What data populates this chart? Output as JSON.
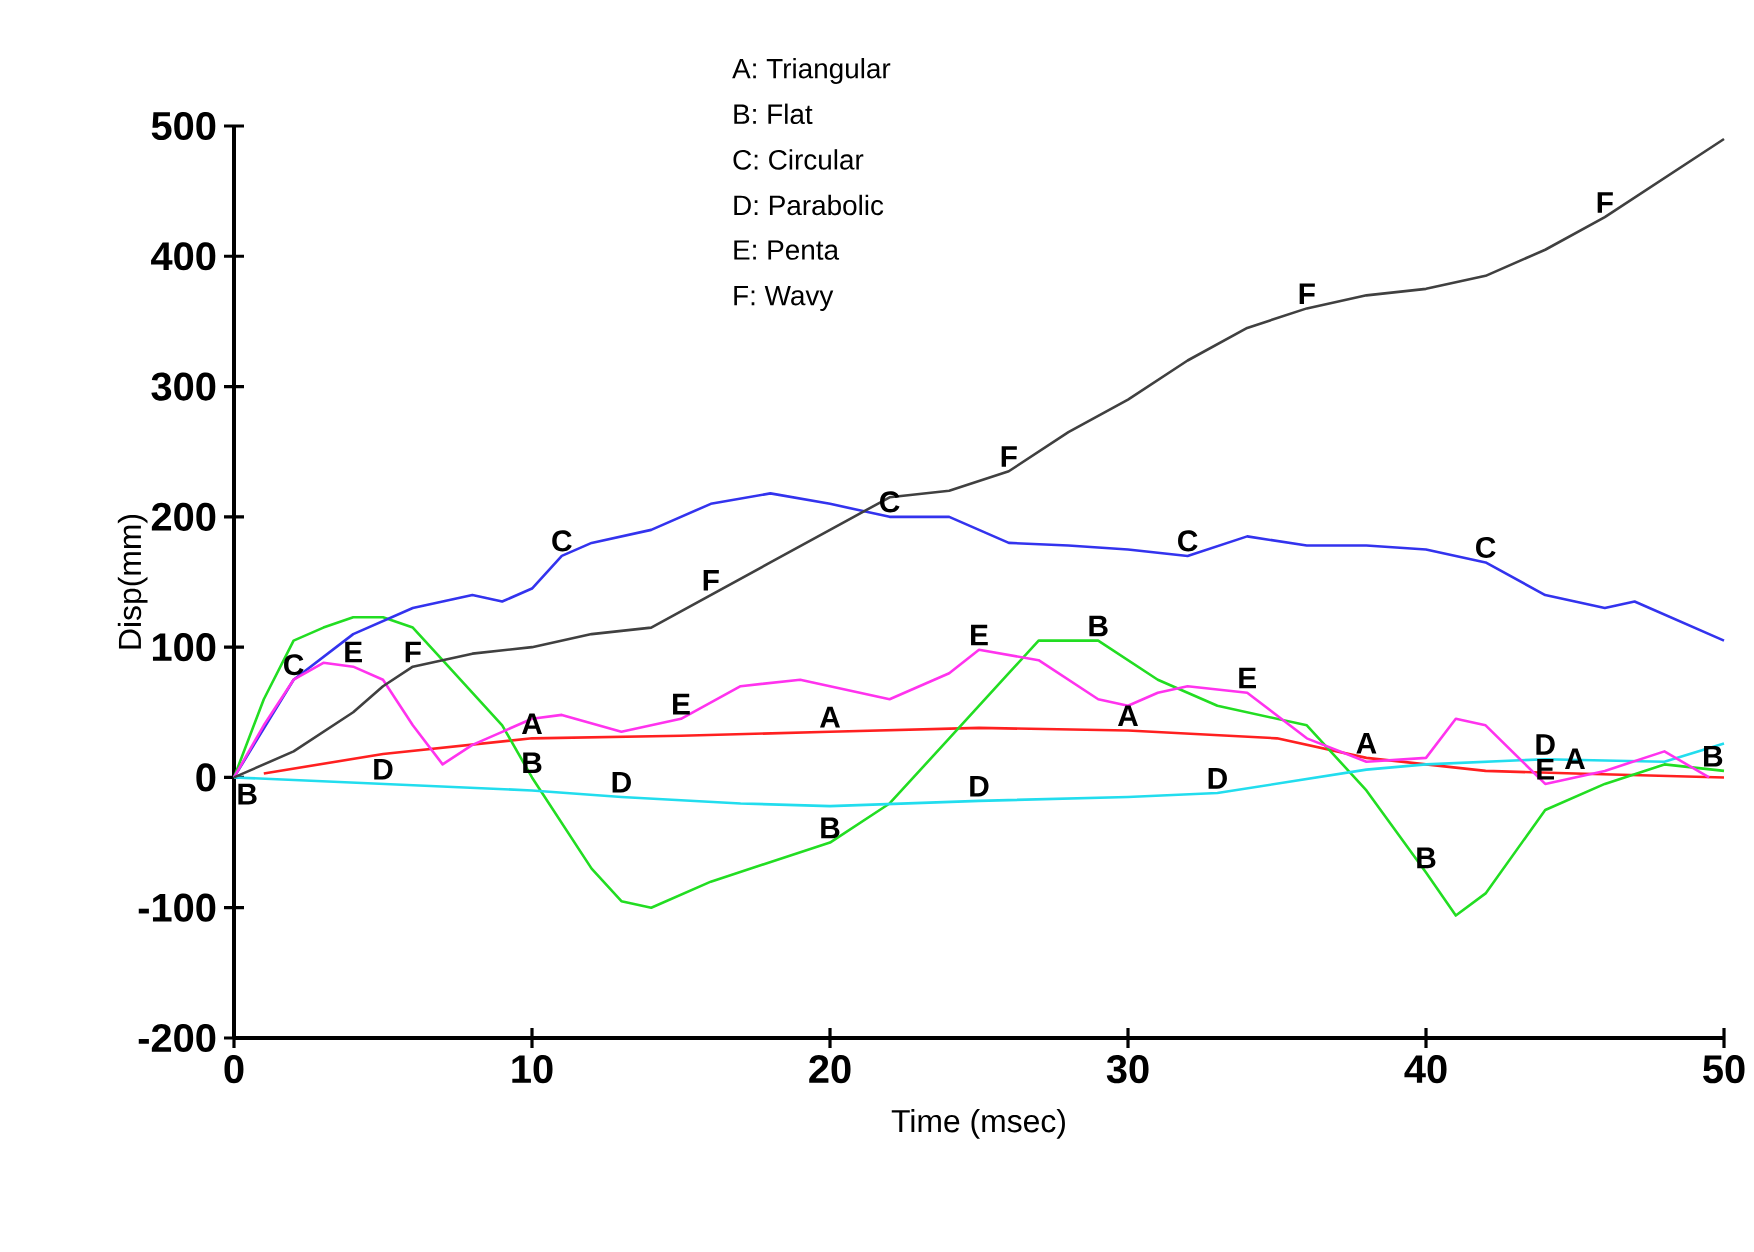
{
  "chart_data": {
    "type": "line",
    "xlabel": "Time (msec)",
    "ylabel": "Disp(mm)",
    "xlim": [
      0,
      50
    ],
    "ylim": [
      -200,
      500
    ],
    "xticks": [
      0,
      10,
      20,
      30,
      40,
      50
    ],
    "yticks": [
      -200,
      -100,
      0,
      100,
      200,
      300,
      400,
      500
    ],
    "grid": false,
    "marker": "none",
    "line_style": "solid",
    "series": [
      {
        "color": "#ff2020",
        "x": [
          1,
          5,
          10,
          15,
          20,
          25,
          30,
          35,
          38,
          40,
          42,
          45,
          50
        ],
        "values": [
          3,
          18,
          30,
          32,
          35,
          38,
          36,
          30,
          15,
          10,
          5,
          3,
          0
        ]
      },
      {
        "color": "#22dd22",
        "x": [
          0,
          1,
          2,
          3,
          4,
          5,
          6,
          7,
          9,
          10,
          12,
          13,
          14,
          16,
          20,
          22,
          24,
          26,
          27,
          29,
          31,
          33,
          36,
          38,
          40,
          41,
          42,
          44,
          46,
          48,
          50
        ],
        "values": [
          0,
          60,
          105,
          115,
          123,
          123,
          115,
          90,
          40,
          0,
          -70,
          -95,
          -100,
          -80,
          -50,
          -20,
          30,
          80,
          105,
          105,
          75,
          55,
          40,
          -10,
          -73,
          -106,
          -89,
          -25,
          -5,
          10,
          5
        ]
      },
      {
        "color": "#3333ee",
        "x": [
          0,
          2,
          4,
          6,
          8,
          9,
          10,
          11,
          12,
          14,
          16,
          18,
          20,
          22,
          24,
          26,
          28,
          30,
          32,
          34,
          36,
          38,
          40,
          42,
          44,
          46,
          47,
          50
        ],
        "values": [
          0,
          75,
          110,
          130,
          140,
          135,
          145,
          170,
          180,
          190,
          210,
          218,
          210,
          200,
          200,
          180,
          178,
          175,
          170,
          185,
          178,
          178,
          175,
          165,
          140,
          130,
          135,
          105
        ]
      },
      {
        "color": "#22ddee",
        "x": [
          0,
          5,
          10,
          13,
          17,
          20,
          25,
          30,
          33,
          38,
          40,
          44,
          48,
          50
        ],
        "values": [
          0,
          -5,
          -10,
          -15,
          -20,
          -22,
          -18,
          -15,
          -12,
          6,
          10,
          14,
          12,
          26
        ]
      },
      {
        "color": "#ff33ee",
        "x": [
          0,
          1,
          2,
          3,
          4,
          5,
          6,
          7,
          8,
          9,
          10,
          11,
          13,
          15,
          17,
          19,
          20,
          22,
          24,
          25,
          27,
          29,
          30,
          31,
          32,
          34,
          36,
          38,
          40,
          41,
          42,
          44,
          46,
          48,
          49.5
        ],
        "values": [
          0,
          40,
          75,
          88,
          85,
          75,
          40,
          10,
          25,
          35,
          45,
          48,
          35,
          45,
          70,
          75,
          70,
          60,
          80,
          98,
          90,
          60,
          55,
          65,
          70,
          65,
          30,
          12,
          15,
          45,
          40,
          -5,
          5,
          20,
          0
        ]
      },
      {
        "color": "#404040",
        "x": [
          0,
          2,
          4,
          5,
          6,
          8,
          10,
          12,
          14,
          16,
          18,
          20,
          22,
          24,
          26,
          28,
          30,
          32,
          34,
          36,
          38,
          40,
          42,
          44,
          46,
          48,
          50
        ],
        "values": [
          0,
          20,
          50,
          70,
          85,
          95,
          100,
          110,
          115,
          140,
          165,
          190,
          215,
          220,
          235,
          265,
          290,
          320,
          345,
          360,
          370,
          375,
          385,
          405,
          430,
          460,
          490
        ]
      }
    ],
    "annotations": [
      "A: Triangular",
      "B: Flat",
      "C: Circular",
      "D: Parabolic",
      "E: Penta",
      "F: Wavy",
      {
        "text": "A",
        "x": 10,
        "y": 30
      },
      {
        "text": "A",
        "x": 20,
        "y": 35
      },
      {
        "text": "A",
        "x": 30,
        "y": 36
      },
      {
        "text": "A",
        "x": 38,
        "y": 15
      },
      {
        "text": "A",
        "x": 45,
        "y": 3
      },
      {
        "text": "B",
        "x": 0,
        "y": 0
      },
      {
        "text": "B",
        "x": 10,
        "y": 0
      },
      {
        "text": "B",
        "x": 20,
        "y": -50
      },
      {
        "text": "B",
        "x": 29,
        "y": 105
      },
      {
        "text": "B",
        "x": 40,
        "y": -73
      },
      {
        "text": "B",
        "x": 50,
        "y": 5
      },
      {
        "text": "C",
        "x": 2,
        "y": 75
      },
      {
        "text": "C",
        "x": 11,
        "y": 170
      },
      {
        "text": "C",
        "x": 22,
        "y": 200
      },
      {
        "text": "C",
        "x": 32,
        "y": 170
      },
      {
        "text": "C",
        "x": 42,
        "y": 165
      },
      {
        "text": "D",
        "x": 5,
        "y": -5
      },
      {
        "text": "D",
        "x": 13,
        "y": -15
      },
      {
        "text": "D",
        "x": 25,
        "y": -18
      },
      {
        "text": "D",
        "x": 33,
        "y": -12
      },
      {
        "text": "D",
        "x": 44,
        "y": 14
      },
      {
        "text": "E",
        "x": 4,
        "y": 85
      },
      {
        "text": "E",
        "x": 15,
        "y": 45
      },
      {
        "text": "E",
        "x": 25,
        "y": 98
      },
      {
        "text": "E",
        "x": 34,
        "y": 65
      },
      {
        "text": "E",
        "x": 44,
        "y": -5
      },
      {
        "text": "F",
        "x": 6,
        "y": 85
      },
      {
        "text": "F",
        "x": 16,
        "y": 140
      },
      {
        "text": "F",
        "x": 26,
        "y": 235
      },
      {
        "text": "F",
        "x": 36,
        "y": 360
      },
      {
        "text": "F",
        "x": 46,
        "y": 430
      }
    ]
  }
}
